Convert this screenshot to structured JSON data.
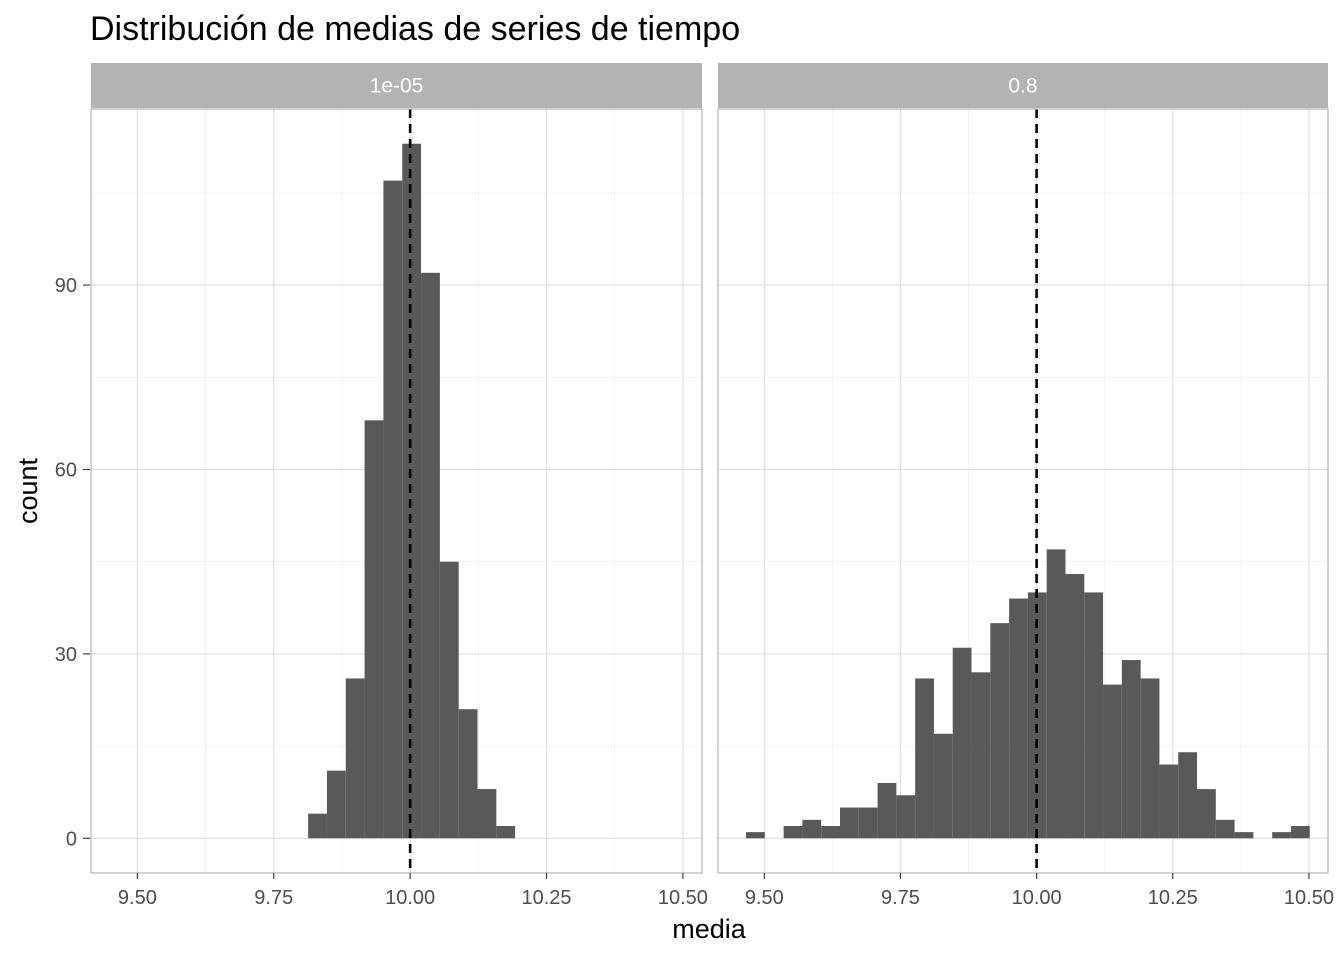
{
  "chart_data": {
    "type": "histogram",
    "title": "Distribución de medias de series de tiempo",
    "xlabel": "media",
    "ylabel": "count",
    "xlim": [
      9.415,
      10.535
    ],
    "ylim": [
      -5.65,
      118.65
    ],
    "x_ticks": [
      9.5,
      9.75,
      10.0,
      10.25,
      10.5
    ],
    "x_tick_labels": [
      "9.50",
      "9.75",
      "10.00",
      "10.25",
      "10.50"
    ],
    "y_ticks": [
      0,
      30,
      60,
      90
    ],
    "y_tick_labels": [
      "0",
      "30",
      "60",
      "90"
    ],
    "reference_line": {
      "x": 10.0,
      "style": "dashed",
      "color": "#000000"
    },
    "bar_color": "#595959",
    "strip_color": "#b3b3b3",
    "grid": true,
    "panels": [
      {
        "label": "1e-05",
        "bin_width": 0.0345,
        "bins": [
          {
            "x0": 9.813,
            "count": 4
          },
          {
            "x0": 9.8475,
            "count": 11
          },
          {
            "x0": 9.882,
            "count": 26
          },
          {
            "x0": 9.9165,
            "count": 68
          },
          {
            "x0": 9.951,
            "count": 107
          },
          {
            "x0": 9.9855,
            "count": 113
          },
          {
            "x0": 10.02,
            "count": 92
          },
          {
            "x0": 10.0545,
            "count": 45
          },
          {
            "x0": 10.089,
            "count": 21
          },
          {
            "x0": 10.1235,
            "count": 8
          },
          {
            "x0": 10.158,
            "count": 2
          }
        ]
      },
      {
        "label": "0.8",
        "bin_width": 0.0345,
        "bins": [
          {
            "x0": 9.4665,
            "count": 1
          },
          {
            "x0": 9.501,
            "count": 0
          },
          {
            "x0": 9.5355,
            "count": 2
          },
          {
            "x0": 9.57,
            "count": 3
          },
          {
            "x0": 9.6045,
            "count": 2
          },
          {
            "x0": 9.639,
            "count": 5
          },
          {
            "x0": 9.6735,
            "count": 5
          },
          {
            "x0": 9.708,
            "count": 9
          },
          {
            "x0": 9.7425,
            "count": 7
          },
          {
            "x0": 9.777,
            "count": 26
          },
          {
            "x0": 9.8115,
            "count": 17
          },
          {
            "x0": 9.846,
            "count": 31
          },
          {
            "x0": 9.8805,
            "count": 27
          },
          {
            "x0": 9.915,
            "count": 35
          },
          {
            "x0": 9.9495,
            "count": 39
          },
          {
            "x0": 9.984,
            "count": 40
          },
          {
            "x0": 10.0185,
            "count": 47
          },
          {
            "x0": 10.053,
            "count": 43
          },
          {
            "x0": 10.0875,
            "count": 40
          },
          {
            "x0": 10.122,
            "count": 25
          },
          {
            "x0": 10.1565,
            "count": 29
          },
          {
            "x0": 10.191,
            "count": 26
          },
          {
            "x0": 10.2255,
            "count": 12
          },
          {
            "x0": 10.26,
            "count": 14
          },
          {
            "x0": 10.2945,
            "count": 8
          },
          {
            "x0": 10.329,
            "count": 3
          },
          {
            "x0": 10.3635,
            "count": 1
          },
          {
            "x0": 10.398,
            "count": 0
          },
          {
            "x0": 10.4325,
            "count": 1
          },
          {
            "x0": 10.467,
            "count": 2
          }
        ]
      }
    ]
  }
}
